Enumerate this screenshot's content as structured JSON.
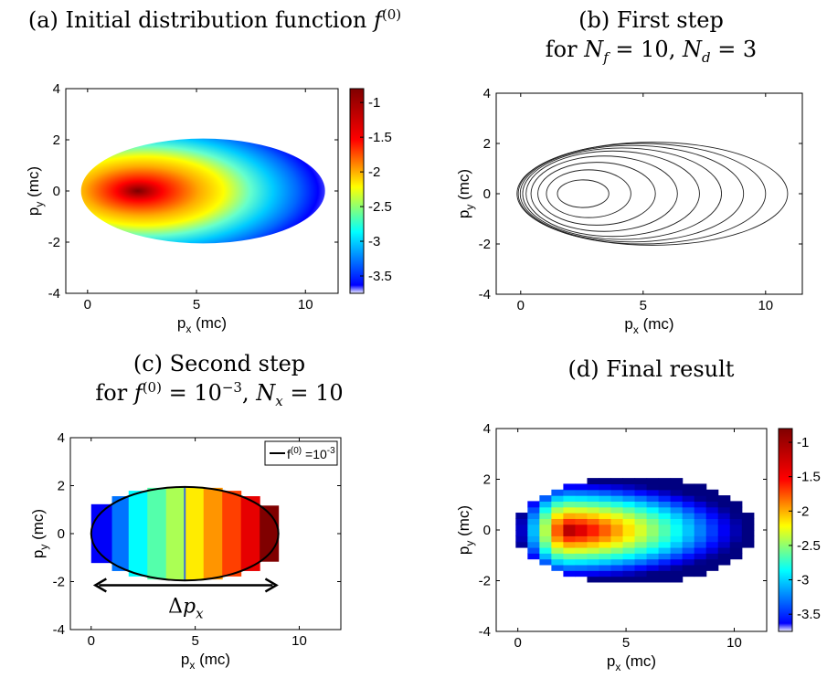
{
  "titles": {
    "a": {
      "prefix": "(a) Initial distribution function ",
      "sym": "f",
      "sup": "(0)"
    },
    "b": {
      "line1": "(b) First step",
      "line2_prefix": "for ",
      "nf_sym": "N",
      "nf_sub": "f",
      "nf_val": " = 10, ",
      "nd_sym": "N",
      "nd_sub": "d",
      "nd_val": " = 3"
    },
    "c": {
      "line1": "(c) Second step",
      "line2_prefix": "for ",
      "f_sym": "f",
      "f_sup": "(0)",
      "f_eq": " = 10",
      "f_exp": "−3",
      "sep": ", ",
      "nx_sym": "N",
      "nx_sub": "x",
      "nx_val": " = 10"
    },
    "d": {
      "line1": "(d) Final result"
    }
  },
  "axes": {
    "xlabel": "p",
    "xlabel_sub": "x",
    "xlabel_unit": " (mc)",
    "ylabel": "p",
    "ylabel_sub": "y",
    "ylabel_unit": " (mc)"
  },
  "legend_c": {
    "label": "f",
    "sup": "(0)",
    "eq": " =10",
    "exp": "-3"
  },
  "annotation_c": {
    "delta": "Δ",
    "sym": "p",
    "sub": "x"
  },
  "colors": {
    "jet": [
      "#00008f",
      "#0000ff",
      "#00ffff",
      "#ffff00",
      "#ff0000",
      "#800000"
    ]
  },
  "chart_data": [
    {
      "id": "a",
      "type": "heatmap",
      "xlim": [
        -1,
        11.5
      ],
      "ylim": [
        -4,
        4
      ],
      "xticks": [
        0,
        5,
        10
      ],
      "yticks": [
        -4,
        -2,
        0,
        2,
        4
      ],
      "ellipse": {
        "center": [
          5.3,
          0
        ],
        "rx": 5.6,
        "ry": 2.05
      },
      "peak": [
        2.3,
        0
      ],
      "colorbar": {
        "ticks": [
          -1,
          -1.5,
          -2,
          -2.5,
          -3,
          -3.5
        ],
        "range": [
          -3.75,
          -0.8
        ]
      }
    },
    {
      "id": "b",
      "type": "line",
      "xlim": [
        -1,
        11.5
      ],
      "ylim": [
        -4,
        4
      ],
      "xticks": [
        0,
        5,
        10
      ],
      "yticks": [
        -4,
        -2,
        0,
        2,
        4
      ],
      "contours": [
        {
          "x_left": 1.5,
          "x_right": 3.6,
          "ry": 0.55
        },
        {
          "x_left": 1.05,
          "x_right": 4.5,
          "ry": 0.95
        },
        {
          "x_left": 0.7,
          "x_right": 5.5,
          "ry": 1.25
        },
        {
          "x_left": 0.42,
          "x_right": 6.4,
          "ry": 1.5
        },
        {
          "x_left": 0.22,
          "x_right": 7.3,
          "ry": 1.7
        },
        {
          "x_left": 0.08,
          "x_right": 8.2,
          "ry": 1.82
        },
        {
          "x_left": -0.02,
          "x_right": 9.1,
          "ry": 1.92
        },
        {
          "x_left": -0.1,
          "x_right": 10.0,
          "ry": 2.0
        },
        {
          "x_left": -0.15,
          "x_right": 10.9,
          "ry": 2.05
        }
      ]
    },
    {
      "id": "c",
      "type": "bar",
      "xlim": [
        -1,
        12
      ],
      "ylim": [
        -4,
        4
      ],
      "xticks": [
        0,
        5,
        10
      ],
      "yticks": [
        -4,
        -2,
        0,
        2,
        4
      ],
      "ellipse": {
        "center": [
          4.5,
          0
        ],
        "rx": 4.5,
        "ry": 1.95
      },
      "strips": [
        {
          "x": [
            0,
            1
          ],
          "value": -3.4
        },
        {
          "x": [
            1,
            1.8
          ],
          "value": -3.05
        },
        {
          "x": [
            1.8,
            2.7
          ],
          "value": -2.65
        },
        {
          "x": [
            2.7,
            3.6
          ],
          "value": -2.4
        },
        {
          "x": [
            3.6,
            4.5
          ],
          "value": -2.15
        },
        {
          "x": [
            4.5,
            5.4
          ],
          "value": -1.85
        },
        {
          "x": [
            5.4,
            6.3
          ],
          "value": -1.6
        },
        {
          "x": [
            6.3,
            7.2
          ],
          "value": -1.35
        },
        {
          "x": [
            7.2,
            8.1
          ],
          "value": -1.1
        },
        {
          "x": [
            8.1,
            9
          ],
          "value": -0.8
        }
      ],
      "arrow": {
        "x": [
          0.2,
          8.9
        ],
        "y": -2.15
      }
    },
    {
      "id": "d",
      "type": "heatmap",
      "xlim": [
        -1,
        11.5
      ],
      "ylim": [
        -4,
        4
      ],
      "xticks": [
        0,
        5,
        10
      ],
      "yticks": [
        -4,
        -2,
        0,
        2,
        4
      ],
      "ellipse": {
        "center": [
          5.4,
          0
        ],
        "rx": 5.5,
        "ry": 2.05
      },
      "peak": [
        2.3,
        0
      ],
      "colorbar": {
        "ticks": [
          -1,
          -1.5,
          -2,
          -2.5,
          -3,
          -3.5
        ],
        "range": [
          -3.75,
          -0.8
        ]
      }
    }
  ]
}
